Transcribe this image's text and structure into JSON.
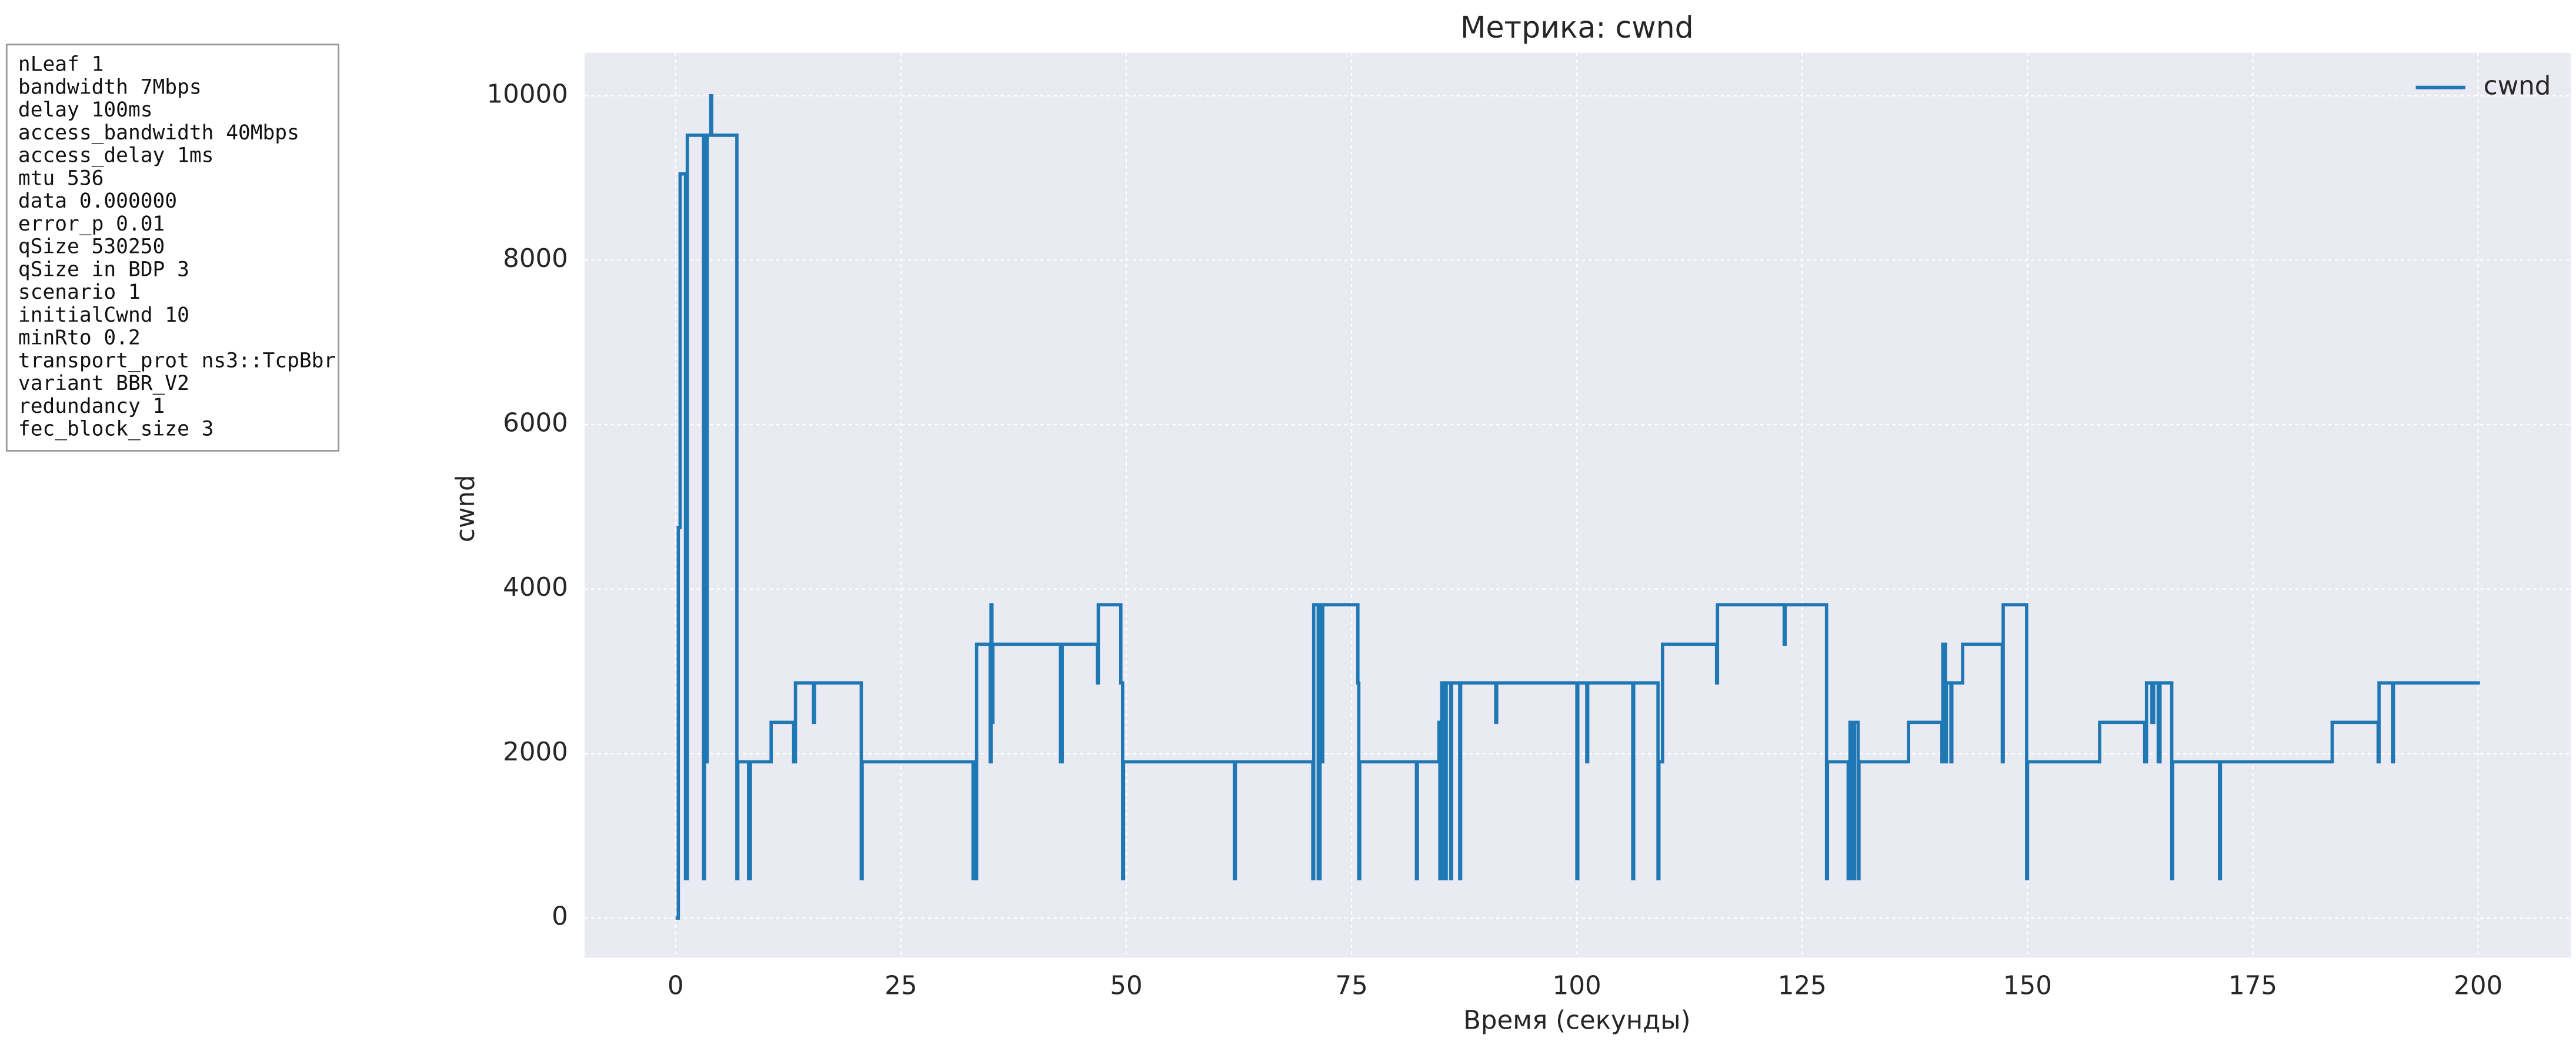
{
  "chart_data": {
    "type": "line",
    "step": "post",
    "title": "Метрика: cwnd",
    "x_label": "Время (секунды)",
    "y_label": "cwnd",
    "annotation_lines": [
      "nLeaf 1",
      "bandwidth 7Mbps",
      "delay  100ms",
      "access_bandwidth 40Mbps",
      "access_delay 1ms",
      "mtu 536",
      "data  0.000000",
      "error_p 0.01",
      "qSize 530250",
      "qSize in BDP 3",
      "scenario 1",
      "initialCwnd  10",
      "minRto 0.2",
      "transport_prot ns3::TcpBbr",
      "variant BBR_V2",
      "redundancy 1",
      "fec_block_size 3"
    ],
    "x": [
      0,
      0.3,
      0.5,
      1.1,
      1.3,
      3.1,
      3.2,
      3.4,
      3.5,
      3.9,
      4.0,
      6.8,
      6.9,
      8.1,
      8.3,
      10.6,
      13.1,
      13.3,
      15.3,
      15.4,
      20.6,
      20.7,
      33.0,
      33.1,
      33.3,
      33.4,
      34.9,
      35.0,
      35.1,
      35.2,
      42.7,
      42.9,
      46.8,
      46.9,
      49.4,
      49.6,
      49.7,
      62.0,
      62.1,
      70.7,
      70.8,
      71.3,
      71.5,
      71.7,
      71.8,
      75.7,
      75.8,
      75.9,
      82.2,
      82.3,
      84.7,
      84.8,
      85.0,
      85.3,
      85.5,
      86.0,
      86.1,
      87.0,
      87.1,
      91.0,
      91.1,
      100.0,
      100.1,
      101.1,
      101.2,
      106.2,
      106.3,
      109.0,
      109.1,
      109.5,
      115.5,
      115.6,
      123.0,
      123.1,
      127.7,
      127.8,
      130.1,
      130.3,
      130.6,
      130.8,
      131.2,
      131.3,
      136.8,
      140.5,
      140.6,
      140.9,
      141.0,
      141.5,
      141.6,
      142.8,
      147.2,
      147.3,
      149.9,
      150.0,
      158.0,
      163.0,
      163.2,
      163.8,
      164.0,
      164.5,
      164.7,
      166.0,
      166.1,
      171.3,
      171.4,
      183.8,
      188.9,
      189.0,
      190.5,
      190.6,
      200.2
    ],
    "series": [
      {
        "name": "cwnd",
        "color": "#1f77b4",
        "values": [
          0,
          4750,
          9050,
          480,
          9520,
          480,
          9520,
          1900,
          9520,
          10000,
          9520,
          480,
          1900,
          480,
          1900,
          2380,
          1900,
          2860,
          2380,
          2860,
          480,
          1900,
          480,
          1900,
          480,
          3330,
          1900,
          3810,
          2380,
          3330,
          1900,
          3330,
          2860,
          3810,
          2860,
          480,
          1900,
          480,
          1900,
          480,
          3810,
          480,
          3810,
          1900,
          3810,
          2860,
          480,
          1900,
          480,
          1900,
          2380,
          480,
          2860,
          480,
          2860,
          480,
          2860,
          480,
          2860,
          2380,
          2860,
          480,
          2860,
          1900,
          2860,
          480,
          2860,
          480,
          1900,
          3330,
          2860,
          3810,
          3330,
          3810,
          480,
          1900,
          480,
          2380,
          480,
          2380,
          480,
          1900,
          2380,
          1900,
          3330,
          1900,
          2860,
          1900,
          2860,
          3330,
          1900,
          3810,
          480,
          1900,
          2380,
          1900,
          2860,
          2380,
          2860,
          1900,
          2860,
          480,
          1900,
          480,
          1900,
          2380,
          1900,
          2860,
          1900,
          2860,
          2860
        ]
      }
    ],
    "xlim": [
      -10.1,
      210.3
    ],
    "xticks": [
      0,
      25,
      50,
      75,
      100,
      125,
      150,
      175,
      200
    ],
    "ylim": [
      -482,
      10522
    ],
    "yticks": [
      0,
      2000,
      4000,
      6000,
      8000,
      10000
    ],
    "grid": true,
    "legend": "upper right"
  }
}
